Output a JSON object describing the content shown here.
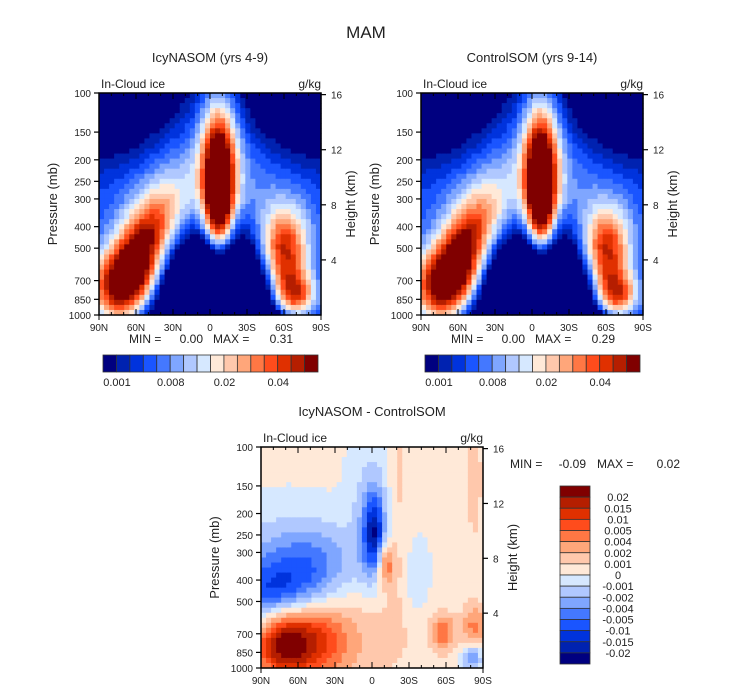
{
  "figure_title": "MAM",
  "colors": {
    "abs_palette": [
      "#000080",
      "#0022b0",
      "#0033dd",
      "#1a55ff",
      "#4478ff",
      "#7fa6ff",
      "#b0c8ff",
      "#d6e8ff",
      "#ffe9d8",
      "#ffc8ac",
      "#ffa67a",
      "#ff7744",
      "#ff4c1c",
      "#e03000",
      "#b51e00",
      "#800000"
    ],
    "diff_palette_top_to_bottom": [
      "#800000",
      "#b51e00",
      "#e03000",
      "#ff4c1c",
      "#ff7744",
      "#ffa67a",
      "#ffc8ac",
      "#ffe9d8",
      "#d6e8ff",
      "#b0c8ff",
      "#7fa6ff",
      "#4478ff",
      "#1a55ff",
      "#0033dd",
      "#0022b0",
      "#000080"
    ]
  },
  "chart_data": [
    {
      "type": "heatmap",
      "id": "icy",
      "title": "IcyNASOM (yrs 4-9)",
      "left_label": "In-Cloud ice",
      "units": "g/kg",
      "xlabel": "",
      "ylabel": "Pressure (mb)",
      "y2label": "Height (km)",
      "x_ticks": [
        "90N",
        "60N",
        "30N",
        "0",
        "30S",
        "60S",
        "90S"
      ],
      "x_range": [
        90,
        -90
      ],
      "y_ticks": [
        100,
        150,
        200,
        250,
        300,
        400,
        500,
        700,
        850,
        1000
      ],
      "y_range": [
        100,
        1000
      ],
      "y_scale": "log",
      "y2_ticks": [
        4,
        8,
        12,
        16
      ],
      "min_label": "MIN =",
      "min_value": "0.00",
      "max_label": "MAX =",
      "max_value": "0.31",
      "colorbar_orientation": "horizontal",
      "colorbar_labels": [
        "0.001",
        "0.008",
        "0.02",
        "0.04"
      ],
      "levels": 16
    },
    {
      "type": "heatmap",
      "id": "ctl",
      "title": "ControlSOM (yrs 9-14)",
      "left_label": "In-Cloud ice",
      "units": "g/kg",
      "xlabel": "",
      "ylabel": "Pressure (mb)",
      "y2label": "Height (km)",
      "x_ticks": [
        "90N",
        "60N",
        "30N",
        "0",
        "30S",
        "60S",
        "90S"
      ],
      "x_range": [
        90,
        -90
      ],
      "y_ticks": [
        100,
        150,
        200,
        250,
        300,
        400,
        500,
        700,
        850,
        1000
      ],
      "y_range": [
        100,
        1000
      ],
      "y_scale": "log",
      "y2_ticks": [
        4,
        8,
        12,
        16
      ],
      "min_label": "MIN =",
      "min_value": "0.00",
      "max_label": "MAX =",
      "max_value": "0.29",
      "colorbar_orientation": "horizontal",
      "colorbar_labels": [
        "0.001",
        "0.008",
        "0.02",
        "0.04"
      ],
      "levels": 16
    },
    {
      "type": "heatmap",
      "id": "diff",
      "title": "IcyNASOM - ControlSOM",
      "left_label": "In-Cloud ice",
      "units": "g/kg",
      "xlabel": "",
      "ylabel": "Pressure (mb)",
      "y2label": "Height (km)",
      "x_ticks": [
        "90N",
        "60N",
        "30N",
        "0",
        "30S",
        "60S",
        "90S"
      ],
      "x_range": [
        90,
        -90
      ],
      "y_ticks": [
        100,
        150,
        200,
        250,
        300,
        400,
        500,
        700,
        850,
        1000
      ],
      "y_range": [
        100,
        1000
      ],
      "y_scale": "log",
      "y2_ticks": [
        4,
        8,
        12,
        16
      ],
      "min_label": "MIN =",
      "min_value": "-0.09",
      "max_label": "MAX =",
      "max_value": "0.02",
      "colorbar_orientation": "vertical",
      "colorbar_labels": [
        "0.02",
        "0.015",
        "0.01",
        "0.005",
        "0.004",
        "0.002",
        "0.001",
        "0",
        "-0.001",
        "-0.002",
        "-0.004",
        "-0.005",
        "-0.01",
        "-0.015",
        "-0.02"
      ],
      "levels": 16
    }
  ]
}
